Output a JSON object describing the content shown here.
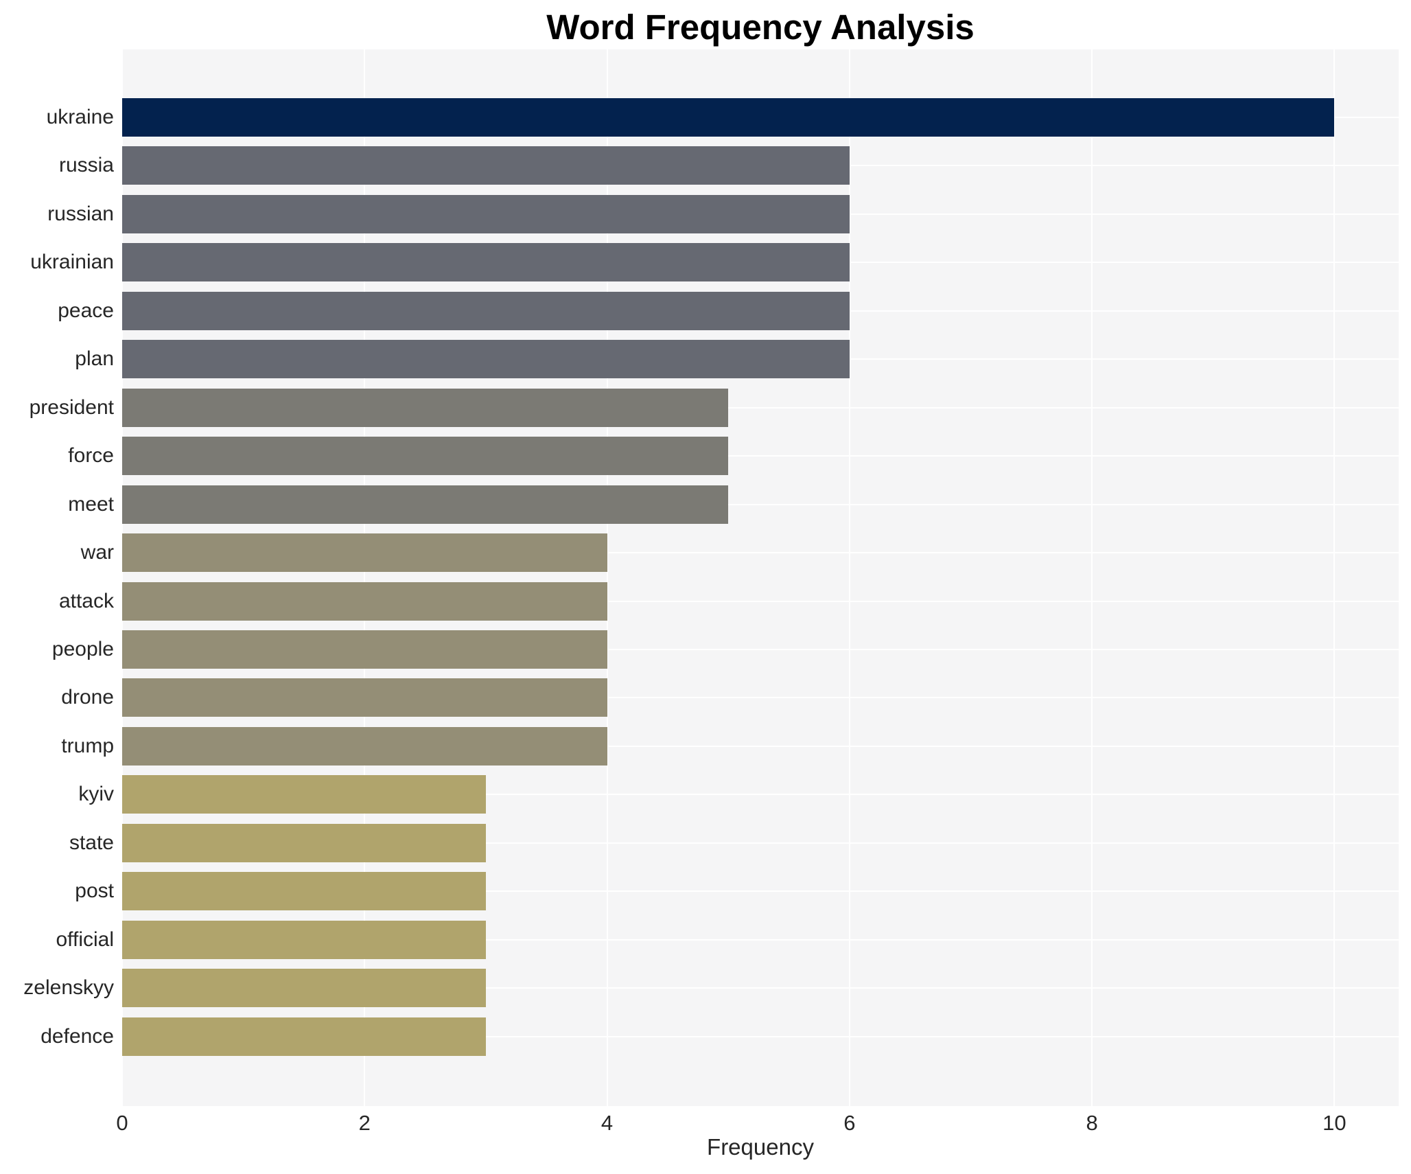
{
  "chart_data": {
    "type": "bar",
    "orientation": "horizontal",
    "title": "Word Frequency Analysis",
    "xlabel": "Frequency",
    "ylabel": "",
    "categories": [
      "ukraine",
      "russia",
      "russian",
      "ukrainian",
      "peace",
      "plan",
      "president",
      "force",
      "meet",
      "war",
      "attack",
      "people",
      "drone",
      "trump",
      "kyiv",
      "state",
      "post",
      "official",
      "zelenskyy",
      "defence"
    ],
    "values": [
      10,
      6,
      6,
      6,
      6,
      6,
      5,
      5,
      5,
      4,
      4,
      4,
      4,
      4,
      3,
      3,
      3,
      3,
      3,
      3
    ],
    "bar_colors": [
      "#03224e",
      "#666972",
      "#666972",
      "#666972",
      "#666972",
      "#666972",
      "#7b7a74",
      "#7b7a74",
      "#7b7a74",
      "#948e76",
      "#948e76",
      "#948e76",
      "#948e76",
      "#948e76",
      "#b0a46c",
      "#b0a46c",
      "#b0a46c",
      "#b0a46c",
      "#b0a46c",
      "#b0a46c"
    ],
    "xticks": [
      0,
      2,
      4,
      6,
      8,
      10
    ],
    "xlim": [
      0,
      10.53
    ],
    "grid": true,
    "legend": "none",
    "plot_background_color": "#f5f5f6",
    "grid_color": "#ffffff",
    "tick_label_color": "#262626",
    "title_color": "#000000"
  }
}
